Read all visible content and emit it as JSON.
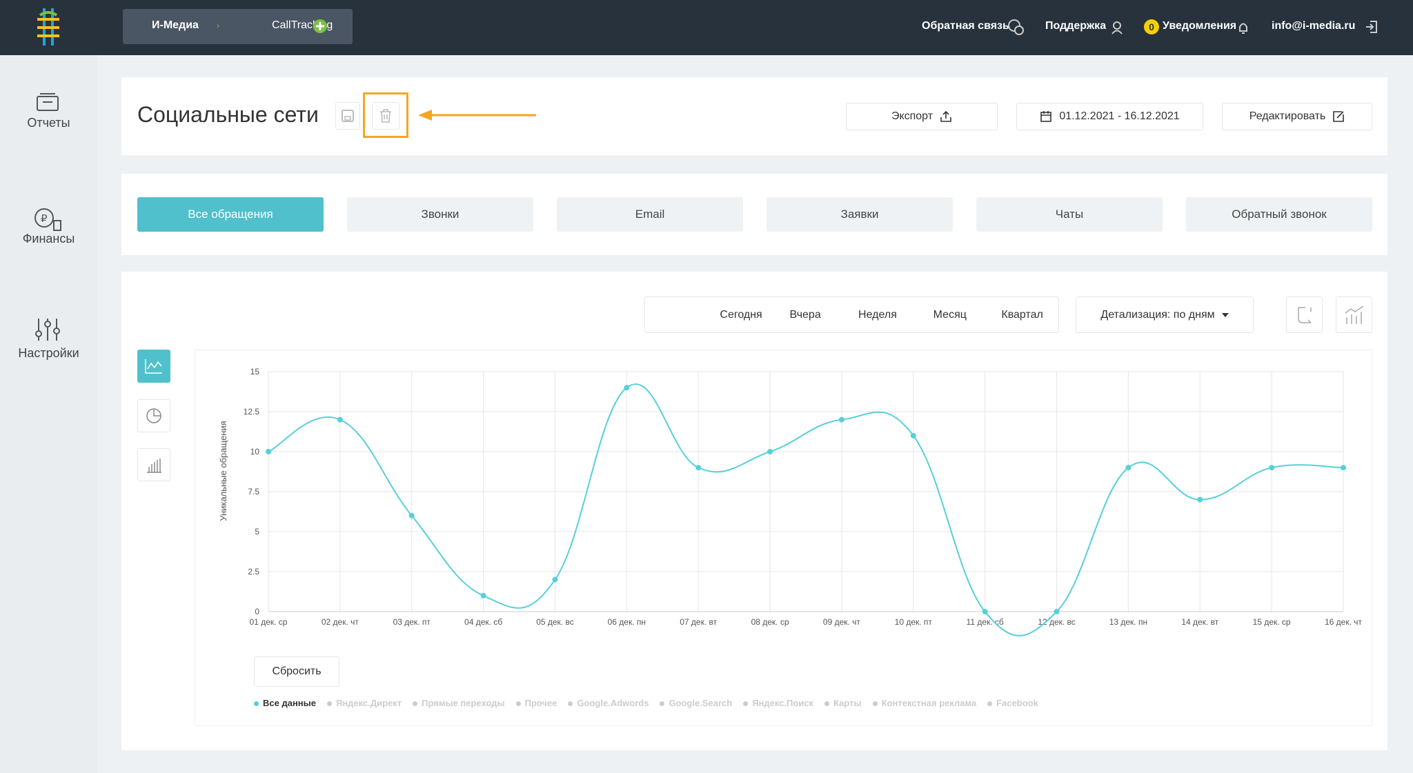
{
  "header": {
    "breadcrumb": [
      "И-Медиа",
      "CallTracking"
    ],
    "links": [
      "Обратная связь",
      "Поддержка"
    ],
    "notifications": {
      "count": 0,
      "label": "Уведомления"
    },
    "email": "info@i-media.ru"
  },
  "sidebar": [
    "Отчеты",
    "Финансы",
    "Настройки"
  ],
  "page": {
    "title": "Социальные сети",
    "export": "Экспорт",
    "date_range": "01.12.2021 - 16.12.2021",
    "edit": "Редактировать"
  },
  "tabs": [
    "Все обращения",
    "Звонки",
    "Email",
    "Заявки",
    "Чаты",
    "Обратный звонок"
  ],
  "periods": [
    "Сегодня",
    "Вчера",
    "Неделя",
    "Месяц",
    "Квартал"
  ],
  "detail": "Детализация: по дням",
  "reset": "Сбросить",
  "chart_data": {
    "type": "line",
    "y_label": "Уникальные обращения",
    "categories": [
      "01 дек. ср",
      "02 дек. чт",
      "03 дек. пт",
      "04 дек. сб",
      "05 дек. вс",
      "06 дек. пн",
      "07 дек. вт",
      "08 дек. ср",
      "09 дек. чт",
      "10 дек. пт",
      "11 дек. сб",
      "12 дек. вс",
      "13 дек. пн",
      "14 дек. вт",
      "15 дек. ср",
      "16 дек. чт"
    ],
    "series": [
      {
        "name": "Все данные",
        "color": "#55d0da",
        "values": [
          10,
          12,
          6,
          1,
          2,
          14,
          9,
          10,
          12,
          11,
          0,
          0,
          9,
          7,
          9,
          9
        ]
      }
    ],
    "inactive_series": [
      "Яндекс.Директ",
      "Прямые переходы",
      "Прочее",
      "Google.Adwords",
      "Google.Search",
      "Яндекс.Поиск",
      "Карты",
      "Контекстная реклама",
      "Facebook"
    ],
    "inactive_color": "#cccccc",
    "ylim": [
      0,
      15
    ],
    "yticks": [
      0,
      2.5,
      5,
      7.5,
      10,
      12.5,
      15
    ],
    "grid": true
  }
}
